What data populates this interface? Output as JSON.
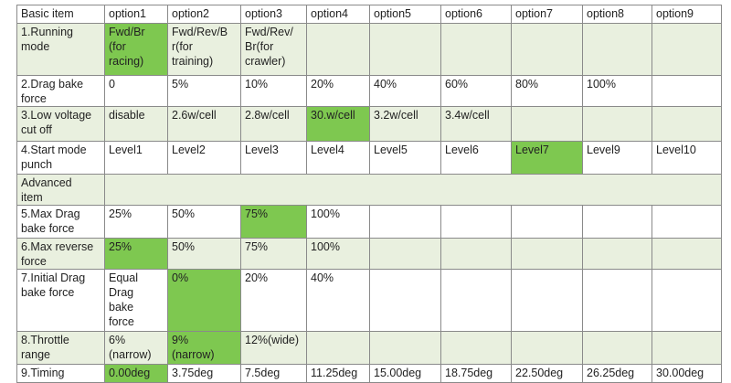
{
  "colors": {
    "highlight": "#7ec850",
    "shade": "#e9f0df",
    "border": "#8a8a8a"
  },
  "table": {
    "header": [
      "Basic item",
      "option1",
      "option2",
      "option3",
      "option4",
      "option5",
      "option6",
      "option7",
      "option8",
      "option9"
    ],
    "rows": [
      {
        "cells": [
          "1.Running\nmode",
          "Fwd/Br\n(for\nracing)",
          "Fwd/Rev/B\nr(for\ntraining)",
          "Fwd/Rev/\nBr(for\ncrawler)",
          "",
          "",
          "",
          "",
          "",
          ""
        ],
        "highlight": [
          1
        ],
        "shaded": true
      },
      {
        "cells": [
          "2.Drag bake\nforce",
          "0",
          "5%",
          "10%",
          "20%",
          "40%",
          "60%",
          "80%",
          "100%",
          ""
        ],
        "highlight": [],
        "shaded": false
      },
      {
        "cells": [
          "3.Low voltage\ncut off",
          "disable",
          "2.6w/cell",
          "2.8w/cell",
          "30.w/cell",
          "3.2w/cell",
          "3.4w/cell",
          "",
          "",
          ""
        ],
        "highlight": [
          4
        ],
        "shaded": true
      },
      {
        "cells": [
          "4.Start mode\npunch",
          "Level1",
          "Level2",
          "Level3",
          "Level4",
          "Level5",
          "Level6",
          "Level7",
          "Level9",
          "Level10"
        ],
        "highlight": [
          7
        ],
        "shaded": false
      },
      {
        "section": "Advanced\nitem",
        "shaded": true
      },
      {
        "cells": [
          "5.Max Drag\nbake force",
          "25%",
          "50%",
          "75%",
          "100%",
          "",
          "",
          "",
          "",
          ""
        ],
        "highlight": [
          3
        ],
        "shaded": false
      },
      {
        "cells": [
          "6.Max reverse\nforce",
          "25%",
          "50%",
          "75%",
          "100%",
          "",
          "",
          "",
          "",
          ""
        ],
        "highlight": [
          1
        ],
        "shaded": true
      },
      {
        "cells": [
          "7.Initial Drag\nbake force",
          "Equal\nDrag\nbake\nforce",
          "0%",
          "20%",
          "40%",
          "",
          "",
          "",
          "",
          ""
        ],
        "highlight": [
          2
        ],
        "shaded": false
      },
      {
        "cells": [
          "8.Throttle\nrange",
          "6%\n(narrow)",
          "9%\n(narrow)",
          "12%(wide)",
          "",
          "",
          "",
          "",
          "",
          ""
        ],
        "highlight": [
          2
        ],
        "shaded": true
      },
      {
        "cells": [
          "9.Timing",
          "0.00deg",
          "3.75deg",
          "7.5deg",
          "11.25deg",
          "15.00deg",
          "18.75deg",
          "22.50deg",
          "26.25deg",
          "30.00deg"
        ],
        "highlight": [
          1
        ],
        "shaded": false
      }
    ]
  }
}
